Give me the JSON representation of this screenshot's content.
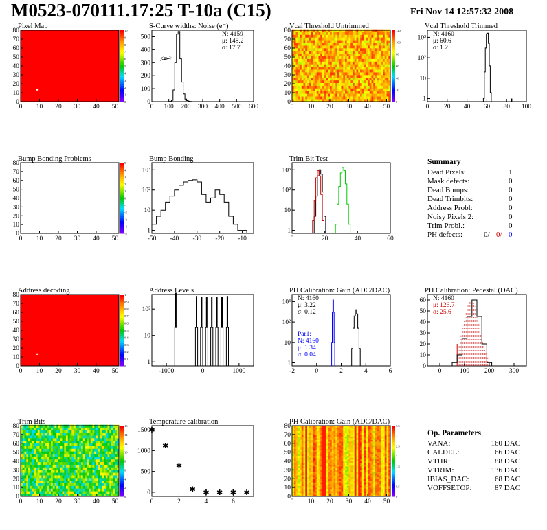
{
  "header": {
    "title": "M0523-070111.17:25 T-10a (C15)",
    "date": "Fri Nov 14 12:57:32 2008"
  },
  "colors": {
    "axis": "#000000",
    "hist": "#000000",
    "blue": "#0000ff",
    "red": "#cc0000",
    "green": "#00cc00"
  },
  "panels": [
    {
      "id": "p1",
      "title": "Pixel Map",
      "type": "heatmap",
      "pattern": "uniform_red",
      "xticks": [
        "0",
        "10",
        "20",
        "30",
        "40",
        "50"
      ],
      "yticks": [
        "0",
        "10",
        "20",
        "30",
        "40",
        "50",
        "60",
        "70",
        "80"
      ],
      "scale": [
        "0",
        "1",
        "2",
        "3",
        "4",
        "5",
        "6",
        "7",
        "8",
        "9",
        "10"
      ]
    },
    {
      "id": "p2",
      "title": "S-Curve widths: Noise (e⁻)",
      "type": "hist",
      "xticks": [
        "0",
        "100",
        "200",
        "300",
        "400",
        "500",
        "600"
      ],
      "yticks": [
        "0",
        "100",
        "200",
        "300",
        "400",
        "500"
      ],
      "stats": [
        "N: 4159",
        "μ: 148.2",
        "σ: 17.7"
      ],
      "note": "<= 1"
    },
    {
      "id": "p3",
      "title": "Vcal Threshold Untrimmed",
      "type": "heatmap",
      "pattern": "threshold",
      "xticks": [
        "0",
        "10",
        "20",
        "30",
        "40",
        "50"
      ],
      "yticks": [
        "0",
        "10",
        "20",
        "30",
        "40",
        "50",
        "60",
        "70",
        "80"
      ],
      "scale": [
        "0",
        "20",
        "40",
        "60",
        "80",
        "100",
        "120"
      ]
    },
    {
      "id": "p4",
      "title": "Vcal Threshold Trimmed",
      "type": "hist",
      "log": true,
      "xticks": [
        "0",
        "20",
        "40",
        "60",
        "80",
        "100"
      ],
      "yticks": [
        "1",
        "10",
        "10²",
        "10³"
      ],
      "stats": [
        "N: 4160",
        "μ: 60.6",
        "σ:  1.2"
      ]
    },
    {
      "id": "p5",
      "title": "Bump Bonding Problems",
      "type": "heatmap",
      "pattern": "empty",
      "xticks": [
        "0",
        "10",
        "20",
        "30",
        "40",
        "50"
      ],
      "yticks": [
        "0",
        "10",
        "20",
        "30",
        "40",
        "50",
        "60",
        "70",
        "80"
      ],
      "scale": [
        "-5",
        "-4",
        "-3",
        "-2",
        "-1",
        "0",
        "1",
        "2",
        "3",
        "4",
        "5"
      ]
    },
    {
      "id": "p6",
      "title": "Bump Bonding",
      "type": "hist",
      "log": true,
      "xticks": [
        "-50",
        "-40",
        "-30",
        "-20",
        "-10"
      ],
      "yticks": [
        "1",
        "10",
        "10²",
        "10³"
      ]
    },
    {
      "id": "p7",
      "title": "Trim Bit Test",
      "type": "hist",
      "log": true,
      "xticks": [
        "0",
        "20",
        "40",
        "60"
      ],
      "yticks": [
        "1",
        "10",
        "10²",
        "10³"
      ]
    },
    {
      "id": "p9",
      "title": "Address decoding",
      "type": "heatmap",
      "pattern": "uniform_red",
      "xticks": [
        "0",
        "10",
        "20",
        "30",
        "40",
        "50"
      ],
      "yticks": [
        "0",
        "10",
        "20",
        "30",
        "40",
        "50",
        "60",
        "70",
        "80"
      ],
      "scale": [
        "0",
        "0.1",
        "0.2",
        "0.3",
        "0.4",
        "0.5",
        "0.6",
        "0.7",
        "0.8",
        "0.9",
        "1"
      ]
    },
    {
      "id": "p10",
      "title": "Address Levels",
      "type": "hist",
      "log": true,
      "xticks": [
        "-1000",
        "0",
        "1000"
      ],
      "yticks": [
        "1",
        "10",
        "10²"
      ]
    },
    {
      "id": "p11",
      "title": "PH Calibration: Gain (ADC/DAC)",
      "type": "hist",
      "log": true,
      "xticks": [
        "-2",
        "0",
        "2",
        "4",
        "6"
      ],
      "yticks": [
        "1",
        "10",
        "10²",
        "10³"
      ],
      "stats": [
        "N: 4160",
        "μ: 3.22",
        "σ: 0.12"
      ],
      "stats2": [
        "Par1:",
        "N: 4160",
        "μ: 1.34",
        "σ: 0.04"
      ]
    },
    {
      "id": "p12",
      "title": "PH Calibration: Pedestal (DAC)",
      "type": "hist",
      "xticks": [
        "0",
        "100",
        "200",
        "300"
      ],
      "yticks": [
        "0",
        "10",
        "20",
        "30",
        "40",
        "50",
        "60"
      ],
      "stats": [
        "N: 4160",
        "μ: 126.7",
        "σ: 25.6"
      ]
    },
    {
      "id": "p13",
      "title": "Trim Bits",
      "type": "heatmap",
      "pattern": "trim",
      "xticks": [
        "0",
        "10",
        "20",
        "30",
        "40",
        "50"
      ],
      "yticks": [
        "0",
        "10",
        "20",
        "30",
        "40",
        "50",
        "60",
        "70",
        "80"
      ],
      "scale": [
        "0",
        "2",
        "4",
        "6",
        "8",
        "10",
        "12",
        "14",
        "16"
      ]
    },
    {
      "id": "p14",
      "title": "Temperature calibration",
      "type": "scatter",
      "xticks": [
        "0",
        "2",
        "4",
        "6"
      ],
      "yticks": [
        "0",
        "500",
        "1000",
        "1500"
      ]
    },
    {
      "id": "p15",
      "title": "PH Calibration: Gain (ADC/DAC)",
      "type": "heatmap",
      "pattern": "gain",
      "xticks": [
        "0",
        "10",
        "20",
        "30",
        "40",
        "50"
      ],
      "yticks": [
        "0",
        "10",
        "20",
        "30",
        "40",
        "50",
        "60",
        "70",
        "80"
      ],
      "scale": [
        "0",
        "0.5",
        "1",
        "1.5",
        "2",
        "2.5",
        "3",
        "3.5"
      ]
    }
  ],
  "summary": {
    "title": "Summary",
    "rows": [
      {
        "label": "Dead Pixels:",
        "value": "1"
      },
      {
        "label": "Mask defects:",
        "value": "0"
      },
      {
        "label": "Dead Bumps:",
        "value": "0"
      },
      {
        "label": "Dead Trimbits:",
        "value": "0"
      },
      {
        "label": "Address Probl:",
        "value": "0"
      },
      {
        "label": "Noisy Pixels 2:",
        "value": "0"
      },
      {
        "label": "Trim Probl.:",
        "value": "0"
      }
    ],
    "ph": {
      "label": "PH defects:",
      "v1": "0/",
      "v2": "0/",
      "v3": "0"
    }
  },
  "params": {
    "title": "Op. Parameters",
    "rows": [
      {
        "label": "VANA:",
        "value": "160 DAC"
      },
      {
        "label": "CALDEL:",
        "value": "66 DAC"
      },
      {
        "label": "VTHR:",
        "value": "88 DAC"
      },
      {
        "label": "VTRIM:",
        "value": "136 DAC"
      },
      {
        "label": "IBIAS_DAC:",
        "value": "68 DAC"
      },
      {
        "label": "VOFFSETOP:",
        "value": "87 DAC"
      }
    ]
  },
  "chart_data": [
    {
      "type": "heatmap",
      "title": "Pixel Map",
      "x_range": [
        0,
        52
      ],
      "y_range": [
        0,
        80
      ],
      "z_range": [
        0,
        10
      ],
      "description_value": "all pixels 10 except one pixel at (8,13) = 0"
    },
    {
      "type": "bar",
      "title": "S-Curve widths: Noise (e⁻)",
      "x": [
        110,
        120,
        130,
        140,
        150,
        160,
        170,
        180,
        190,
        200,
        210,
        220,
        230
      ],
      "values": [
        2,
        10,
        90,
        300,
        520,
        540,
        330,
        150,
        60,
        20,
        8,
        3,
        1
      ],
      "xlim": [
        0,
        600
      ],
      "ylim": [
        0,
        550
      ]
    },
    {
      "type": "heatmap",
      "title": "Vcal Threshold Untrimmed",
      "x_range": [
        0,
        52
      ],
      "y_range": [
        0,
        80
      ],
      "z_range": [
        0,
        130
      ]
    },
    {
      "type": "bar",
      "title": "Vcal Threshold Trimmed",
      "x": [
        57,
        58,
        59,
        60,
        61,
        62,
        63,
        64,
        85
      ],
      "values": [
        1,
        20,
        300,
        1500,
        1600,
        500,
        40,
        2,
        1
      ],
      "xlim": [
        0,
        100
      ],
      "log_y": true
    },
    {
      "type": "heatmap",
      "title": "Bump Bonding Problems",
      "x_range": [
        0,
        52
      ],
      "y_range": [
        0,
        80
      ],
      "z_range": [
        -5,
        5
      ]
    },
    {
      "type": "bar",
      "title": "Bump Bonding",
      "x": [
        -49,
        -47,
        -45,
        -43,
        -41,
        -39,
        -37,
        -35,
        -33,
        -31,
        -29,
        -27,
        -25,
        -23,
        -21,
        -19,
        -17,
        -15,
        -13,
        -11,
        -9
      ],
      "values": [
        2,
        5,
        10,
        25,
        50,
        100,
        170,
        250,
        300,
        320,
        250,
        60,
        25,
        40,
        100,
        60,
        25,
        5,
        2,
        1,
        1
      ],
      "xlim": [
        -50,
        -5
      ],
      "log_y": true
    },
    {
      "type": "bar",
      "title": "Trim Bit Test",
      "series": [
        {
          "name": "black",
          "x": [
            14,
            15,
            16,
            17,
            18,
            19,
            20
          ],
          "values": [
            5,
            50,
            500,
            1000,
            600,
            80,
            5
          ]
        },
        {
          "name": "red",
          "x": [
            13,
            14,
            15,
            16,
            17,
            18,
            19
          ],
          "values": [
            3,
            30,
            400,
            900,
            500,
            60,
            3
          ]
        },
        {
          "name": "green",
          "x": [
            27,
            28,
            29,
            30,
            31,
            32,
            33,
            34,
            35
          ],
          "values": [
            2,
            20,
            150,
            700,
            1300,
            900,
            200,
            20,
            2
          ]
        }
      ],
      "xlim": [
        0,
        60
      ],
      "log_y": true
    },
    {
      "type": "heatmap",
      "title": "Address decoding",
      "x_range": [
        0,
        52
      ],
      "y_range": [
        0,
        80
      ],
      "z_range": [
        0,
        1
      ]
    },
    {
      "type": "bar",
      "title": "Address Levels",
      "x": [
        -740,
        -170,
        -30,
        110,
        250,
        390,
        530,
        680
      ],
      "values": [
        400,
        300,
        280,
        280,
        280,
        280,
        280,
        300
      ],
      "xlim": [
        -1400,
        1400
      ],
      "log_y": true
    },
    {
      "type": "bar",
      "title": "PH Calibration: Gain (ADC/DAC)",
      "series": [
        {
          "name": "Gain",
          "x": [
            2.9,
            3.0,
            3.1,
            3.2,
            3.3,
            3.4,
            3.5
          ],
          "values": [
            5,
            50,
            200,
            400,
            250,
            50,
            5
          ]
        },
        {
          "name": "Par1",
          "x": [
            1.25,
            1.3,
            1.35,
            1.4,
            1.45
          ],
          "values": [
            10,
            300,
            1200,
            300,
            10
          ]
        }
      ],
      "xlim": [
        -2,
        6
      ],
      "log_y": true
    },
    {
      "type": "bar",
      "title": "PH Calibration: Pedestal (DAC)",
      "x": [
        60,
        80,
        100,
        120,
        140,
        160,
        180,
        200
      ],
      "values": [
        3,
        10,
        25,
        45,
        60,
        45,
        20,
        3
      ],
      "xlim": [
        -50,
        350
      ],
      "ylim": [
        0,
        65
      ]
    },
    {
      "type": "heatmap",
      "title": "Trim Bits",
      "x_range": [
        0,
        52
      ],
      "y_range": [
        0,
        80
      ],
      "z_range": [
        0,
        16
      ]
    },
    {
      "type": "scatter",
      "title": "Temperature calibration",
      "x": [
        0,
        1,
        2,
        3,
        4,
        5,
        6,
        7
      ],
      "y": [
        1500,
        1120,
        640,
        70,
        0,
        0,
        0,
        0
      ],
      "ylim": [
        -100,
        1600
      ]
    },
    {
      "type": "heatmap",
      "title": "PH Calibration: Gain (ADC/DAC)",
      "x_range": [
        0,
        52
      ],
      "y_range": [
        0,
        80
      ],
      "z_range": [
        0,
        3.5
      ]
    }
  ]
}
